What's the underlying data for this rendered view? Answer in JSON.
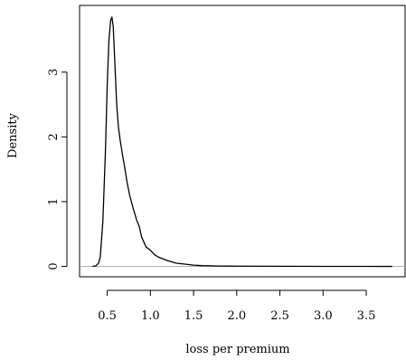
{
  "chart_data": {
    "type": "line",
    "title": "",
    "xlabel": "loss per premium",
    "ylabel": "Density",
    "xlim": [
      0.18,
      3.95
    ],
    "ylim": [
      -0.16,
      4.03
    ],
    "x_ticks": [
      0.5,
      1.0,
      1.5,
      2.0,
      2.5,
      3.0,
      3.5
    ],
    "x_tick_labels": [
      "0.5",
      "1.0",
      "1.5",
      "2.0",
      "2.5",
      "3.0",
      "3.5"
    ],
    "y_ticks": [
      0,
      1,
      2,
      3
    ],
    "y_tick_labels": [
      "0",
      "1",
      "2",
      "3"
    ],
    "zero_line": true,
    "colors": {
      "line": "#000000",
      "zero_line": "#b0b0b0"
    },
    "series": [
      {
        "x": [
          0.33,
          0.37,
          0.4,
          0.42,
          0.45,
          0.48,
          0.5,
          0.52,
          0.54,
          0.555,
          0.57,
          0.59,
          0.61,
          0.63,
          0.65,
          0.68,
          0.7,
          0.73,
          0.76,
          0.8,
          0.84,
          0.87,
          0.9,
          0.95,
          1.0,
          1.05,
          1.1,
          1.2,
          1.3,
          1.4,
          1.5,
          1.6,
          1.8,
          2.0,
          2.5,
          3.0,
          3.5,
          3.8
        ],
        "y": [
          0.0,
          0.01,
          0.05,
          0.15,
          0.7,
          1.8,
          2.8,
          3.5,
          3.8,
          3.85,
          3.7,
          3.1,
          2.5,
          2.15,
          1.95,
          1.7,
          1.55,
          1.3,
          1.1,
          0.9,
          0.72,
          0.62,
          0.45,
          0.3,
          0.25,
          0.18,
          0.14,
          0.09,
          0.05,
          0.035,
          0.02,
          0.012,
          0.006,
          0.004,
          0.002,
          0.001,
          0.0005,
          0.0
        ]
      }
    ]
  }
}
